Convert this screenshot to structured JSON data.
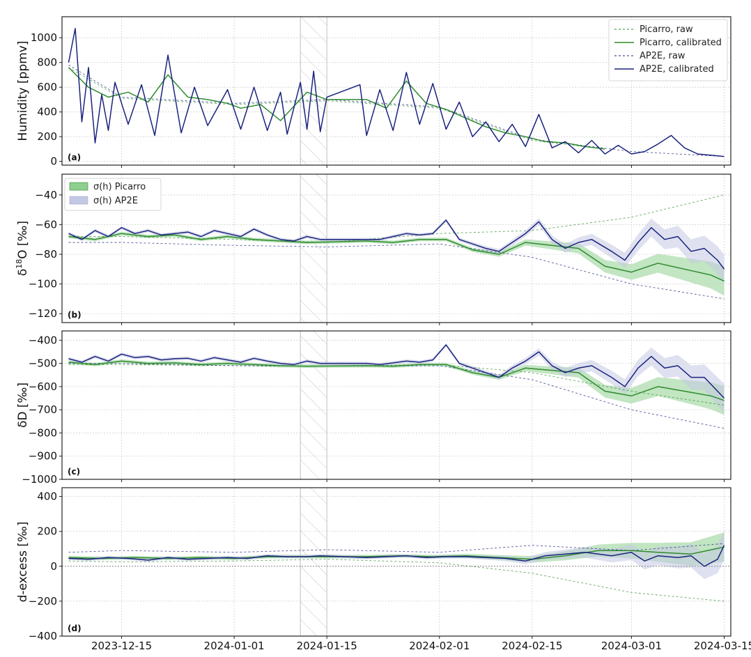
{
  "figure": {
    "x_tick_labels": [
      "2023-12-15",
      "2024-01-01",
      "2024-01-15",
      "2024-02-01",
      "2024-02-15",
      "2024-03-01",
      "2024-03-15"
    ],
    "legend_panel_a": [
      "Picarro, raw",
      "Picarro, calibrated",
      "AP2E, raw",
      "AP2E, calibrated"
    ],
    "legend_panel_b": [
      "σ(h) Picarro",
      "σ(h) AP2E"
    ],
    "colors": {
      "picarro": "#2e8b2e",
      "ap2e": "#1a237e",
      "picarro_band": "#8fcf8f",
      "ap2e_band": "#c5c8e4",
      "grid": "#d0d0d0",
      "hatch": "#bdbdbd"
    }
  },
  "chart_data": [
    {
      "type": "line",
      "panel_label": "(a)",
      "ylabel": "Humidity [ppmv]",
      "xlim": [
        "2023-12-06",
        "2024-03-16"
      ],
      "ylim": [
        -30,
        1170
      ],
      "y_ticks": [
        0,
        200,
        400,
        600,
        800,
        1000
      ],
      "x_tick_dates": [
        "2023-12-15",
        "2024-01-01",
        "2024-01-15",
        "2024-02-01",
        "2024-02-15",
        "2024-03-01",
        "2024-03-15"
      ],
      "hatched_interval": [
        "2024-01-11",
        "2024-01-15"
      ],
      "zero_line": false,
      "legend": "top-right",
      "series": [
        {
          "name": "AP2E, calibrated",
          "x": [
            "2023-12-07",
            "2023-12-08",
            "2023-12-09",
            "2023-12-10",
            "2023-12-11",
            "2023-12-12",
            "2023-12-13",
            "2023-12-14",
            "2023-12-16",
            "2023-12-18",
            "2023-12-20",
            "2023-12-22",
            "2023-12-24",
            "2023-12-26",
            "2023-12-28",
            "2023-12-31",
            "2024-01-02",
            "2024-01-04",
            "2024-01-06",
            "2024-01-08",
            "2024-01-09",
            "2024-01-11",
            "2024-01-12",
            "2024-01-13",
            "2024-01-14",
            "2024-01-15",
            "2024-01-20",
            "2024-01-21",
            "2024-01-23",
            "2024-01-25",
            "2024-01-27",
            "2024-01-29",
            "2024-01-31",
            "2024-02-02",
            "2024-02-04",
            "2024-02-06",
            "2024-02-08",
            "2024-02-10",
            "2024-02-12",
            "2024-02-14",
            "2024-02-16",
            "2024-02-18",
            "2024-02-20",
            "2024-02-22",
            "2024-02-24",
            "2024-02-26",
            "2024-02-28",
            "2024-03-01",
            "2024-03-03",
            "2024-03-05",
            "2024-03-07",
            "2024-03-09",
            "2024-03-11",
            "2024-03-13",
            "2024-03-15"
          ],
          "y": [
            800,
            1075,
            320,
            760,
            150,
            540,
            250,
            640,
            300,
            620,
            210,
            860,
            230,
            600,
            290,
            580,
            260,
            600,
            250,
            560,
            220,
            640,
            260,
            730,
            240,
            520,
            620,
            210,
            580,
            250,
            720,
            300,
            630,
            260,
            480,
            200,
            320,
            160,
            300,
            120,
            380,
            110,
            160,
            70,
            170,
            60,
            130,
            60,
            80,
            140,
            210,
            110,
            60,
            50,
            40
          ]
        },
        {
          "name": "Picarro, calibrated",
          "x": [
            "2023-12-07",
            "2023-12-10",
            "2023-12-13",
            "2023-12-16",
            "2023-12-19",
            "2023-12-22",
            "2023-12-25",
            "2023-12-28",
            "2023-12-31",
            "2024-01-02",
            "2024-01-05",
            "2024-01-08",
            "2024-01-12",
            "2024-01-15",
            "2024-01-21",
            "2024-01-24",
            "2024-01-27",
            "2024-01-30",
            "2024-02-02",
            "2024-02-05",
            "2024-02-08",
            "2024-02-11",
            "2024-02-14",
            "2024-02-17",
            "2024-02-20",
            "2024-02-23",
            "2024-02-26"
          ],
          "y": [
            760,
            600,
            520,
            560,
            480,
            700,
            520,
            500,
            470,
            430,
            460,
            330,
            560,
            500,
            500,
            430,
            650,
            470,
            420,
            350,
            280,
            230,
            200,
            160,
            150,
            120,
            100
          ]
        },
        {
          "name": "AP2E, raw",
          "x": [
            "2023-12-07",
            "2023-12-15",
            "2024-01-01",
            "2024-01-15",
            "2024-02-01",
            "2024-02-15",
            "2024-03-01",
            "2024-03-15"
          ],
          "y": [
            780,
            520,
            470,
            500,
            440,
            180,
            80,
            40
          ]
        },
        {
          "name": "Picarro, raw",
          "x": [
            "2023-12-07",
            "2023-12-15",
            "2024-01-01",
            "2024-01-15",
            "2024-02-01",
            "2024-02-15",
            "2024-02-26"
          ],
          "y": [
            760,
            510,
            460,
            490,
            430,
            170,
            100
          ]
        }
      ]
    },
    {
      "type": "line",
      "panel_label": "(b)",
      "ylabel": "δ18O [‰]",
      "xlim": [
        "2023-12-06",
        "2024-03-16"
      ],
      "ylim": [
        -126,
        -26
      ],
      "y_ticks": [
        -120,
        -100,
        -80,
        -60,
        -40
      ],
      "x_tick_dates": [
        "2023-12-15",
        "2024-01-01",
        "2024-01-15",
        "2024-02-01",
        "2024-02-15",
        "2024-03-01",
        "2024-03-15"
      ],
      "hatched_interval": [
        "2024-01-11",
        "2024-01-15"
      ],
      "zero_line": false,
      "legend": "top-left",
      "series": [
        {
          "name": "AP2E, calibrated",
          "x": [
            "2023-12-07",
            "2023-12-09",
            "2023-12-11",
            "2023-12-13",
            "2023-12-15",
            "2023-12-17",
            "2023-12-19",
            "2023-12-21",
            "2023-12-23",
            "2023-12-25",
            "2023-12-27",
            "2023-12-29",
            "2023-12-31",
            "2024-01-02",
            "2024-01-04",
            "2024-01-06",
            "2024-01-08",
            "2024-01-10",
            "2024-01-12",
            "2024-01-14",
            "2024-01-21",
            "2024-01-23",
            "2024-01-25",
            "2024-01-27",
            "2024-01-29",
            "2024-01-31",
            "2024-02-02",
            "2024-02-04",
            "2024-02-06",
            "2024-02-08",
            "2024-02-10",
            "2024-02-12",
            "2024-02-14",
            "2024-02-16",
            "2024-02-18",
            "2024-02-20",
            "2024-02-22",
            "2024-02-24",
            "2024-02-27",
            "2024-02-29",
            "2024-03-02",
            "2024-03-04",
            "2024-03-06",
            "2024-03-08",
            "2024-03-10",
            "2024-03-12",
            "2024-03-14",
            "2024-03-15"
          ],
          "y": [
            -66,
            -70,
            -64,
            -68,
            -62,
            -66,
            -64,
            -67,
            -66,
            -65,
            -68,
            -64,
            -66,
            -68,
            -63,
            -67,
            -70,
            -71,
            -68,
            -70,
            -70,
            -70,
            -68,
            -66,
            -67,
            -66,
            -57,
            -70,
            -73,
            -76,
            -78,
            -72,
            -66,
            -58,
            -70,
            -76,
            -72,
            -70,
            -78,
            -84,
            -72,
            -62,
            -70,
            -68,
            -78,
            -76,
            -84,
            -90
          ]
        },
        {
          "name": "Picarro, calibrated",
          "x": [
            "2023-12-07",
            "2023-12-11",
            "2023-12-15",
            "2023-12-19",
            "2023-12-23",
            "2023-12-27",
            "2023-12-31",
            "2024-01-04",
            "2024-01-08",
            "2024-01-12",
            "2024-01-21",
            "2024-01-25",
            "2024-01-29",
            "2024-02-02",
            "2024-02-06",
            "2024-02-10",
            "2024-02-14",
            "2024-02-18",
            "2024-02-22",
            "2024-02-26",
            "2024-03-01",
            "2024-03-05",
            "2024-03-09",
            "2024-03-13",
            "2024-03-15"
          ],
          "y": [
            -68,
            -70,
            -66,
            -68,
            -67,
            -70,
            -68,
            -70,
            -71,
            -72,
            -71,
            -72,
            -70,
            -70,
            -77,
            -80,
            -72,
            -74,
            -76,
            -88,
            -92,
            -86,
            -90,
            -94,
            -98
          ]
        },
        {
          "name": "AP2E, raw",
          "x": [
            "2023-12-07",
            "2023-12-15",
            "2024-01-01",
            "2024-01-15",
            "2024-02-01",
            "2024-02-15",
            "2024-03-01",
            "2024-03-15"
          ],
          "y": [
            -72,
            -72,
            -74,
            -75,
            -73,
            -82,
            -100,
            -110
          ]
        },
        {
          "name": "Picarro, raw",
          "x": [
            "2023-12-07",
            "2023-12-15",
            "2024-01-01",
            "2024-01-15",
            "2024-02-01",
            "2024-02-15",
            "2024-03-01",
            "2024-03-15"
          ],
          "y": [
            -68,
            -68,
            -70,
            -72,
            -66,
            -64,
            -55,
            -40
          ]
        }
      ]
    },
    {
      "type": "line",
      "panel_label": "(c)",
      "ylabel": "δD [‰]",
      "xlim": [
        "2023-12-06",
        "2024-03-16"
      ],
      "ylim": [
        -1000,
        -360
      ],
      "y_ticks": [
        -1000,
        -900,
        -800,
        -700,
        -600,
        -500,
        -400
      ],
      "x_tick_dates": [
        "2023-12-15",
        "2024-01-01",
        "2024-01-15",
        "2024-02-01",
        "2024-02-15",
        "2024-03-01",
        "2024-03-15"
      ],
      "hatched_interval": [
        "2024-01-11",
        "2024-01-15"
      ],
      "zero_line": false,
      "series": [
        {
          "name": "AP2E, calibrated",
          "x": [
            "2023-12-07",
            "2023-12-09",
            "2023-12-11",
            "2023-12-13",
            "2023-12-15",
            "2023-12-17",
            "2023-12-19",
            "2023-12-21",
            "2023-12-23",
            "2023-12-25",
            "2023-12-27",
            "2023-12-29",
            "2023-12-31",
            "2024-01-02",
            "2024-01-04",
            "2024-01-06",
            "2024-01-08",
            "2024-01-10",
            "2024-01-12",
            "2024-01-14",
            "2024-01-21",
            "2024-01-23",
            "2024-01-25",
            "2024-01-27",
            "2024-01-29",
            "2024-01-31",
            "2024-02-02",
            "2024-02-04",
            "2024-02-06",
            "2024-02-08",
            "2024-02-10",
            "2024-02-12",
            "2024-02-14",
            "2024-02-16",
            "2024-02-18",
            "2024-02-20",
            "2024-02-22",
            "2024-02-24",
            "2024-02-27",
            "2024-02-29",
            "2024-03-02",
            "2024-03-04",
            "2024-03-06",
            "2024-03-08",
            "2024-03-10",
            "2024-03-12",
            "2024-03-14",
            "2024-03-15"
          ],
          "y": [
            -480,
            -495,
            -470,
            -490,
            -460,
            -475,
            -470,
            -485,
            -480,
            -478,
            -490,
            -475,
            -485,
            -495,
            -478,
            -490,
            -500,
            -505,
            -490,
            -500,
            -500,
            -505,
            -498,
            -490,
            -495,
            -485,
            -420,
            -500,
            -520,
            -540,
            -560,
            -520,
            -490,
            -450,
            -510,
            -540,
            -520,
            -510,
            -560,
            -600,
            -520,
            -470,
            -520,
            -510,
            -560,
            -560,
            -620,
            -650
          ]
        },
        {
          "name": "Picarro, calibrated",
          "x": [
            "2023-12-07",
            "2023-12-11",
            "2023-12-15",
            "2023-12-19",
            "2023-12-23",
            "2023-12-27",
            "2023-12-31",
            "2024-01-04",
            "2024-01-08",
            "2024-01-12",
            "2024-01-21",
            "2024-01-25",
            "2024-01-29",
            "2024-02-02",
            "2024-02-06",
            "2024-02-10",
            "2024-02-14",
            "2024-02-18",
            "2024-02-22",
            "2024-02-26",
            "2024-03-01",
            "2024-03-05",
            "2024-03-09",
            "2024-03-13",
            "2024-03-15"
          ],
          "y": [
            -495,
            -505,
            -490,
            -500,
            -498,
            -505,
            -500,
            -505,
            -510,
            -512,
            -510,
            -512,
            -505,
            -505,
            -540,
            -560,
            -520,
            -530,
            -540,
            -620,
            -640,
            -600,
            -620,
            -640,
            -660
          ]
        },
        {
          "name": "AP2E, raw",
          "x": [
            "2023-12-07",
            "2023-12-15",
            "2024-01-01",
            "2024-01-15",
            "2024-02-01",
            "2024-02-15",
            "2024-03-01",
            "2024-03-15"
          ],
          "y": [
            -500,
            -500,
            -510,
            -512,
            -510,
            -570,
            -700,
            -780
          ]
        },
        {
          "name": "Picarro, raw",
          "x": [
            "2023-12-07",
            "2023-12-15",
            "2024-01-01",
            "2024-01-15",
            "2024-02-01",
            "2024-02-15",
            "2024-03-01",
            "2024-03-15"
          ],
          "y": [
            -505,
            -505,
            -510,
            -512,
            -505,
            -540,
            -620,
            -680
          ]
        }
      ]
    },
    {
      "type": "line",
      "panel_label": "(d)",
      "ylabel": "d-excess [‰]",
      "xlim": [
        "2023-12-06",
        "2024-03-16"
      ],
      "ylim": [
        -400,
        450
      ],
      "y_ticks": [
        -400,
        -200,
        0,
        200,
        400
      ],
      "x_tick_dates": [
        "2023-12-15",
        "2024-01-01",
        "2024-01-15",
        "2024-02-01",
        "2024-02-15",
        "2024-03-01",
        "2024-03-15"
      ],
      "hatched_interval": [
        "2024-01-11",
        "2024-01-15"
      ],
      "zero_line": true,
      "series": [
        {
          "name": "AP2E, calibrated",
          "x": [
            "2023-12-07",
            "2023-12-10",
            "2023-12-13",
            "2023-12-16",
            "2023-12-19",
            "2023-12-22",
            "2023-12-25",
            "2023-12-28",
            "2023-12-31",
            "2024-01-03",
            "2024-01-06",
            "2024-01-09",
            "2024-01-12",
            "2024-01-14",
            "2024-01-21",
            "2024-01-24",
            "2024-01-27",
            "2024-01-30",
            "2024-02-02",
            "2024-02-05",
            "2024-02-08",
            "2024-02-11",
            "2024-02-14",
            "2024-02-17",
            "2024-02-20",
            "2024-02-23",
            "2024-02-27",
            "2024-03-01",
            "2024-03-03",
            "2024-03-05",
            "2024-03-08",
            "2024-03-10",
            "2024-03-12",
            "2024-03-14",
            "2024-03-15"
          ],
          "y": [
            45,
            40,
            50,
            45,
            35,
            50,
            40,
            45,
            50,
            45,
            60,
            55,
            55,
            60,
            50,
            55,
            60,
            50,
            55,
            55,
            50,
            45,
            30,
            60,
            70,
            80,
            60,
            80,
            30,
            60,
            50,
            60,
            0,
            40,
            120
          ]
        },
        {
          "name": "Picarro, calibrated",
          "x": [
            "2023-12-07",
            "2023-12-12",
            "2023-12-17",
            "2023-12-22",
            "2023-12-27",
            "2024-01-01",
            "2024-01-06",
            "2024-01-12",
            "2024-01-21",
            "2024-01-26",
            "2024-01-31",
            "2024-02-05",
            "2024-02-10",
            "2024-02-15",
            "2024-02-20",
            "2024-02-25",
            "2024-03-01",
            "2024-03-05",
            "2024-03-10",
            "2024-03-15"
          ],
          "y": [
            50,
            45,
            50,
            45,
            50,
            45,
            55,
            55,
            55,
            60,
            55,
            60,
            50,
            40,
            60,
            90,
            90,
            80,
            70,
            110
          ]
        },
        {
          "name": "AP2E, raw",
          "x": [
            "2023-12-07",
            "2023-12-15",
            "2024-01-01",
            "2024-01-15",
            "2024-02-01",
            "2024-02-15",
            "2024-03-01",
            "2024-03-15"
          ],
          "y": [
            80,
            90,
            80,
            95,
            80,
            120,
            90,
            130
          ]
        },
        {
          "name": "Picarro, raw",
          "x": [
            "2023-12-07",
            "2023-12-15",
            "2024-01-01",
            "2024-01-15",
            "2024-02-01",
            "2024-02-15",
            "2024-03-01",
            "2024-03-15"
          ],
          "y": [
            30,
            25,
            30,
            40,
            20,
            -40,
            -150,
            -200
          ]
        }
      ]
    }
  ]
}
